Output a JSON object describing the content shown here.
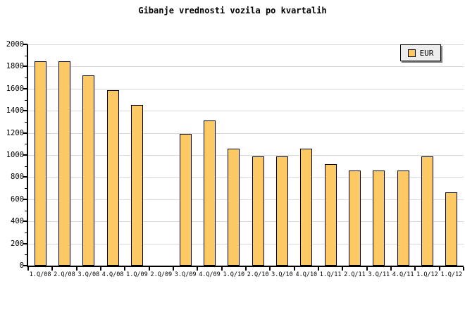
{
  "title": "Gibanje vrednosti vozila po kvartalih",
  "chart_data": {
    "type": "bar",
    "title": "Gibanje vrednosti vozila po kvartalih",
    "categories": [
      "1.Q/08",
      "2.Q/08",
      "3.Q/08",
      "4.Q/08",
      "1.Q/09",
      "2.Q/09",
      "3.Q/09",
      "4.Q/09",
      "1.Q/10",
      "2.Q/10",
      "3.Q/10",
      "4.Q/10",
      "1.Q/11",
      "2.Q/11",
      "3.Q/11",
      "4.Q/11",
      "1.Q/12",
      "1.Q/12"
    ],
    "values": [
      1845,
      1845,
      1720,
      1585,
      1450,
      0,
      1190,
      1315,
      1055,
      990,
      990,
      1055,
      920,
      860,
      860,
      860,
      990,
      660
    ],
    "xlabel": "",
    "ylabel": "",
    "ylim": [
      0,
      2000
    ],
    "ytick_major": 200,
    "ytick_minor": 100,
    "grid": "horizontal",
    "legend": {
      "label": "EUR",
      "position": "top-right"
    },
    "colors": {
      "bar_fill": "#FDC965",
      "bar_border": "#000000",
      "grid": "#D8D8D8",
      "axis": "#000000",
      "legend_bg": "#EDEDED",
      "legend_shadow": "#808080",
      "background": "#FFFFFF"
    }
  }
}
